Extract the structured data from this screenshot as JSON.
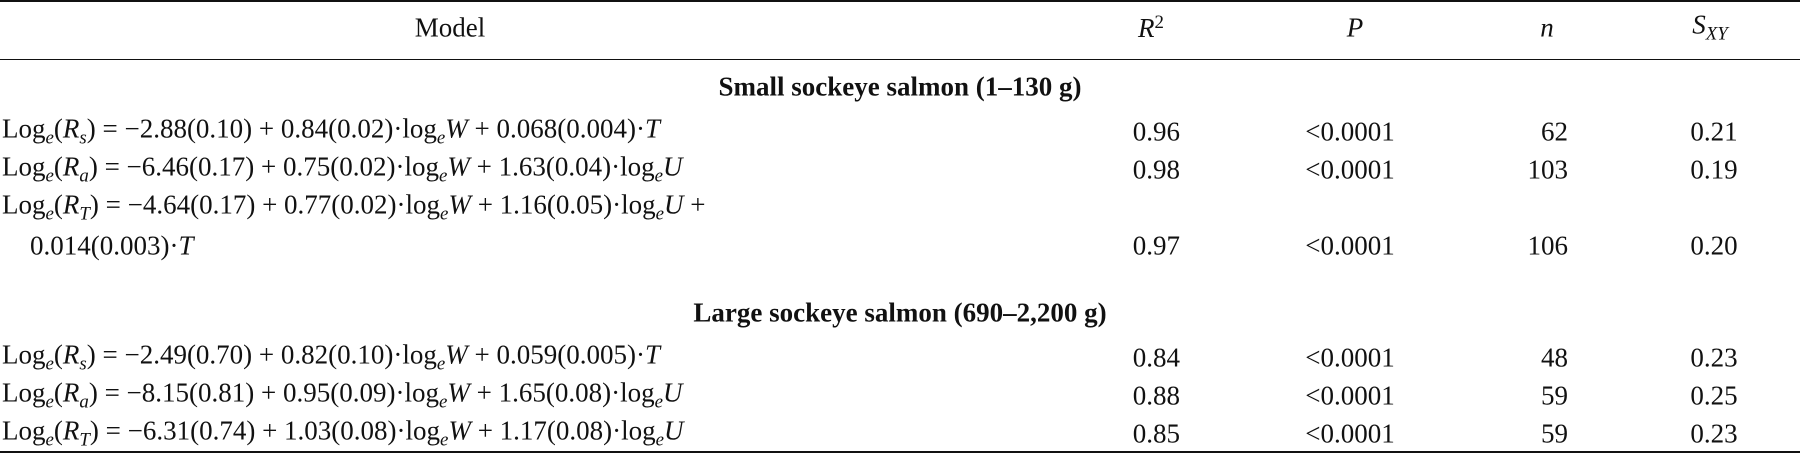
{
  "table": {
    "columns": [
      [
        {
          "text": "Model"
        }
      ],
      [
        {
          "text": "R",
          "style": "italic"
        },
        {
          "text": "2",
          "style": "sup"
        }
      ],
      [
        {
          "text": "P",
          "style": "italic"
        }
      ],
      [
        {
          "text": "n",
          "style": "italic"
        }
      ],
      [
        {
          "text": "S",
          "style": "italic"
        },
        {
          "text": "XY",
          "style": "sub"
        }
      ]
    ],
    "sections": [
      {
        "title": "Small sockeye salmon (1–130 g)",
        "rows": [
          {
            "model": [
              [
                {
                  "text": "Log"
                },
                {
                  "text": "e",
                  "style": "sub"
                },
                {
                  "text": "("
                },
                {
                  "text": "R",
                  "style": "italic"
                },
                {
                  "text": "s",
                  "style": "sub"
                },
                {
                  "text": ") = −2.88(0.10) + 0.84(0.02)·log"
                },
                {
                  "text": "e",
                  "style": "sub"
                },
                {
                  "text": "W",
                  "style": "italic"
                },
                {
                  "text": " + 0.068(0.004)·"
                },
                {
                  "text": "T",
                  "style": "italic"
                }
              ]
            ],
            "r2": "0.96",
            "p": "<0.0001",
            "n": "62",
            "sxy": "0.21"
          },
          {
            "model": [
              [
                {
                  "text": "Log"
                },
                {
                  "text": "e",
                  "style": "sub"
                },
                {
                  "text": "("
                },
                {
                  "text": "R",
                  "style": "italic"
                },
                {
                  "text": "a",
                  "style": "sub"
                },
                {
                  "text": ") = −6.46(0.17) + 0.75(0.02)·log"
                },
                {
                  "text": "e",
                  "style": "sub"
                },
                {
                  "text": "W",
                  "style": "italic"
                },
                {
                  "text": " + 1.63(0.04)·log"
                },
                {
                  "text": "e",
                  "style": "sub"
                },
                {
                  "text": "U",
                  "style": "italic"
                }
              ]
            ],
            "r2": "0.98",
            "p": "<0.0001",
            "n": "103",
            "sxy": "0.19"
          },
          {
            "model": [
              [
                {
                  "text": "Log"
                },
                {
                  "text": "e",
                  "style": "sub"
                },
                {
                  "text": "("
                },
                {
                  "text": "R",
                  "style": "italic"
                },
                {
                  "text": "T",
                  "style": "sub"
                },
                {
                  "text": ") = −4.64(0.17) + 0.77(0.02)·log"
                },
                {
                  "text": "e",
                  "style": "sub"
                },
                {
                  "text": "W",
                  "style": "italic"
                },
                {
                  "text": " + 1.16(0.05)·log"
                },
                {
                  "text": "e",
                  "style": "sub"
                },
                {
                  "text": "U",
                  "style": "italic"
                },
                {
                  "text": " +"
                }
              ],
              [
                {
                  "text": "0.014(0.003)·"
                },
                {
                  "text": "T",
                  "style": "italic"
                }
              ]
            ],
            "r2": "0.97",
            "p": "<0.0001",
            "n": "106",
            "sxy": "0.20"
          }
        ]
      },
      {
        "title": "Large sockeye salmon (690–2,200 g)",
        "rows": [
          {
            "model": [
              [
                {
                  "text": "Log"
                },
                {
                  "text": "e",
                  "style": "sub"
                },
                {
                  "text": "("
                },
                {
                  "text": "R",
                  "style": "italic"
                },
                {
                  "text": "s",
                  "style": "sub"
                },
                {
                  "text": ") = −2.49(0.70) + 0.82(0.10)·log"
                },
                {
                  "text": "e",
                  "style": "sub"
                },
                {
                  "text": "W",
                  "style": "italic"
                },
                {
                  "text": " + 0.059(0.005)·"
                },
                {
                  "text": "T",
                  "style": "italic"
                }
              ]
            ],
            "r2": "0.84",
            "p": "<0.0001",
            "n": "48",
            "sxy": "0.23"
          },
          {
            "model": [
              [
                {
                  "text": "Log"
                },
                {
                  "text": "e",
                  "style": "sub"
                },
                {
                  "text": "("
                },
                {
                  "text": "R",
                  "style": "italic"
                },
                {
                  "text": "a",
                  "style": "sub"
                },
                {
                  "text": ") = −8.15(0.81) + 0.95(0.09)·log"
                },
                {
                  "text": "e",
                  "style": "sub"
                },
                {
                  "text": "W",
                  "style": "italic"
                },
                {
                  "text": " + 1.65(0.08)·log"
                },
                {
                  "text": "e",
                  "style": "sub"
                },
                {
                  "text": "U",
                  "style": "italic"
                }
              ]
            ],
            "r2": "0.88",
            "p": "<0.0001",
            "n": "59",
            "sxy": "0.25"
          },
          {
            "model": [
              [
                {
                  "text": "Log"
                },
                {
                  "text": "e",
                  "style": "sub"
                },
                {
                  "text": "("
                },
                {
                  "text": "R",
                  "style": "italic"
                },
                {
                  "text": "T",
                  "style": "sub"
                },
                {
                  "text": ") = −6.31(0.74) + 1.03(0.08)·log"
                },
                {
                  "text": "e",
                  "style": "sub"
                },
                {
                  "text": "W",
                  "style": "italic"
                },
                {
                  "text": " + 1.17(0.08)·log"
                },
                {
                  "text": "e",
                  "style": "sub"
                },
                {
                  "text": "U",
                  "style": "italic"
                }
              ]
            ],
            "r2": "0.85",
            "p": "<0.0001",
            "n": "59",
            "sxy": "0.23"
          }
        ]
      }
    ]
  }
}
